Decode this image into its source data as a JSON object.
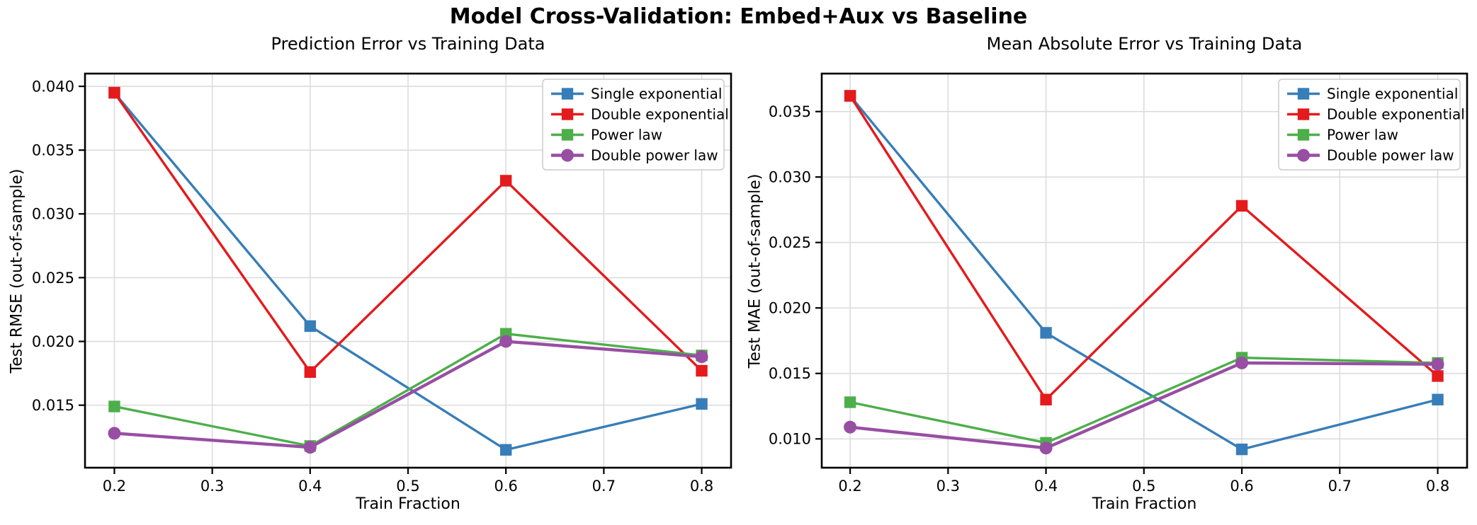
{
  "figure_title": "Model Cross-Validation: Embed+Aux vs Baseline",
  "chart_data": [
    {
      "type": "line",
      "title": "Prediction Error vs Training Data",
      "xlabel": "Train Fraction",
      "ylabel": "Test RMSE (out-of-sample)",
      "x": [
        0.2,
        0.4,
        0.6,
        0.8
      ],
      "series": [
        {
          "name": "Single exponential",
          "color": "#377eb8",
          "marker": "square",
          "values": [
            0.0395,
            0.0212,
            0.0115,
            0.0151
          ]
        },
        {
          "name": "Double exponential",
          "color": "#e41a1c",
          "marker": "square",
          "values": [
            0.0395,
            0.0176,
            0.0326,
            0.0177
          ]
        },
        {
          "name": "Power law",
          "color": "#4daf4a",
          "marker": "square",
          "values": [
            0.0149,
            0.0118,
            0.0206,
            0.0189
          ]
        },
        {
          "name": "Double power law",
          "color": "#984ea3",
          "marker": "circle",
          "values": [
            0.0128,
            0.0117,
            0.02,
            0.0188
          ]
        }
      ],
      "xlim": [
        0.17,
        0.83
      ],
      "ylim": [
        0.0101,
        0.041
      ],
      "xticks": {
        "values": [
          0.2,
          0.3,
          0.4,
          0.5,
          0.6,
          0.7,
          0.8
        ],
        "labels": [
          "0.2",
          "0.3",
          "0.4",
          "0.5",
          "0.6",
          "0.7",
          "0.8"
        ]
      },
      "yticks": {
        "values": [
          0.015,
          0.02,
          0.025,
          0.03,
          0.035,
          0.04
        ],
        "labels": [
          "0.015",
          "0.020",
          "0.025",
          "0.030",
          "0.035",
          "0.040"
        ]
      },
      "grid": true,
      "legend_position": "upper right"
    },
    {
      "type": "line",
      "title": "Mean Absolute Error vs Training Data",
      "xlabel": "Train Fraction",
      "ylabel": "Test MAE (out-of-sample)",
      "x": [
        0.2,
        0.4,
        0.6,
        0.8
      ],
      "series": [
        {
          "name": "Single exponential",
          "color": "#377eb8",
          "marker": "square",
          "values": [
            0.0362,
            0.0181,
            0.0092,
            0.013
          ]
        },
        {
          "name": "Double exponential",
          "color": "#e41a1c",
          "marker": "square",
          "values": [
            0.0362,
            0.013,
            0.0278,
            0.0148
          ]
        },
        {
          "name": "Power law",
          "color": "#4daf4a",
          "marker": "square",
          "values": [
            0.0128,
            0.0097,
            0.0162,
            0.0158
          ]
        },
        {
          "name": "Double power law",
          "color": "#984ea3",
          "marker": "circle",
          "values": [
            0.0109,
            0.0093,
            0.0158,
            0.0157
          ]
        }
      ],
      "xlim": [
        0.171,
        0.83
      ],
      "ylim": [
        0.0078,
        0.0379
      ],
      "xticks": {
        "values": [
          0.2,
          0.3,
          0.4,
          0.5,
          0.6,
          0.7,
          0.8
        ],
        "labels": [
          "0.2",
          "0.3",
          "0.4",
          "0.5",
          "0.6",
          "0.7",
          "0.8"
        ]
      },
      "yticks": {
        "values": [
          0.01,
          0.015,
          0.02,
          0.025,
          0.03,
          0.035
        ],
        "labels": [
          "0.010",
          "0.015",
          "0.020",
          "0.025",
          "0.030",
          "0.035"
        ]
      },
      "grid": true,
      "legend_position": "upper right"
    }
  ]
}
